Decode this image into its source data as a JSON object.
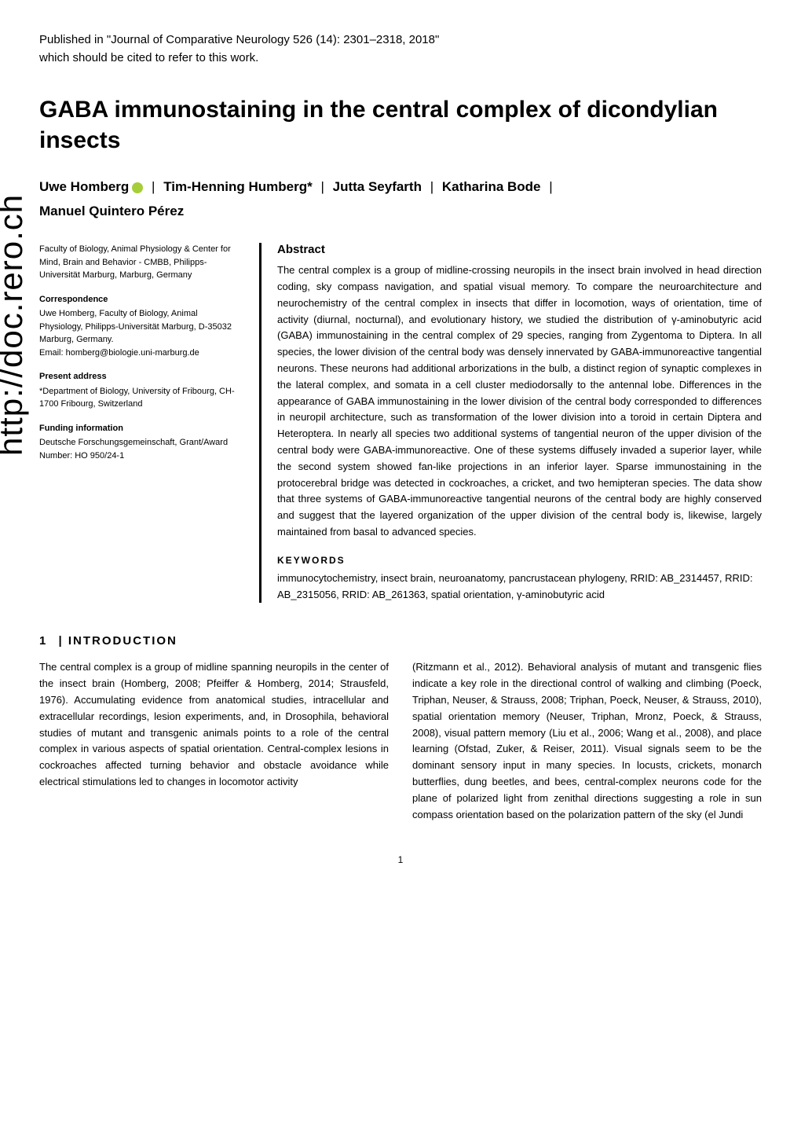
{
  "citation": {
    "line1": "Published in \"Journal of Comparative Neurology 526 (14): 2301–2318, 2018\"",
    "line2": "which should be cited to refer to this work."
  },
  "title": "GABA immunostaining in the central complex of dicondylian insects",
  "authors": {
    "a1": "Uwe Homberg",
    "a2": "Tim-Henning Humberg*",
    "a3": "Jutta Seyfarth",
    "a4": "Katharina Bode",
    "a5": "Manuel Quintero Pérez"
  },
  "sidebar": {
    "affiliation": "Faculty of Biology, Animal Physiology & Center for Mind, Brain and Behavior - CMBB, Philipps-Universität Marburg, Marburg, Germany",
    "correspondence_heading": "Correspondence",
    "correspondence": "Uwe Homberg, Faculty of Biology, Animal Physiology, Philipps-Universität Marburg, D-35032 Marburg, Germany.",
    "email": "Email: homberg@biologie.uni-marburg.de",
    "present_heading": "Present address",
    "present": "*Department of Biology, University of Fribourg, CH-1700 Fribourg, Switzerland",
    "funding_heading": "Funding information",
    "funding": "Deutsche Forschungsgemeinschaft, Grant/Award Number: HO 950/24-1"
  },
  "abstract": {
    "heading": "Abstract",
    "text": "The central complex is a group of midline-crossing neuropils in the insect brain involved in head direction coding, sky compass navigation, and spatial visual memory. To compare the neuroarchitecture and neurochemistry of the central complex in insects that differ in locomotion, ways of orientation, time of activity (diurnal, nocturnal), and evolutionary history, we studied the distribution of γ-aminobutyric acid (GABA) immunostaining in the central complex of 29 species, ranging from Zygentoma to Diptera. In all species, the lower division of the central body was densely innervated by GABA-immunoreactive tangential neurons. These neurons had additional arborizations in the bulb, a distinct region of synaptic complexes in the lateral complex, and somata in a cell cluster mediodorsally to the antennal lobe. Differences in the appearance of GABA immunostaining in the lower division of the central body corresponded to differences in neuropil architecture, such as transformation of the lower division into a toroid in certain Diptera and Heteroptera. In nearly all species two additional systems of tangential neuron of the upper division of the central body were GABA-immunoreactive. One of these systems diffusely invaded a superior layer, while the second system showed fan-like projections in an inferior layer. Sparse immunostaining in the protocerebral bridge was detected in cockroaches, a cricket, and two hemipteran species. The data show that three systems of GABA-immunoreactive tangential neurons of the central body are highly conserved and suggest that the layered organization of the upper division of the central body is, likewise, largely maintained from basal to advanced species.",
    "keywords_heading": "KEYWORDS",
    "keywords": "immunocytochemistry, insect brain, neuroanatomy, pancrustacean phylogeny, RRID: AB_2314457, RRID: AB_2315056, RRID: AB_261363, spatial orientation, γ-aminobutyric acid"
  },
  "intro": {
    "section_num": "1",
    "section_sep": "|",
    "heading": "INTRODUCTION",
    "col1": "The central complex is a group of midline spanning neuropils in the center of the insect brain (Homberg, 2008; Pfeiffer & Homberg, 2014; Strausfeld, 1976). Accumulating evidence from anatomical studies, intracellular and extracellular recordings, lesion experiments, and, in Drosophila, behavioral studies of mutant and transgenic animals points to a role of the central complex in various aspects of spatial orientation. Central-complex lesions in cockroaches affected turning behavior and obstacle avoidance while electrical stimulations led to changes in locomotor activity",
    "col2": "(Ritzmann et al., 2012). Behavioral analysis of mutant and transgenic flies indicate a key role in the directional control of walking and climbing (Poeck, Triphan, Neuser, & Strauss, 2008; Triphan, Poeck, Neuser, & Strauss, 2010), spatial orientation memory (Neuser, Triphan, Mronz, Poeck, & Strauss, 2008), visual pattern memory (Liu et al., 2006; Wang et al., 2008), and place learning (Ofstad, Zuker, & Reiser, 2011). Visual signals seem to be the dominant sensory input in many species. In locusts, crickets, monarch butterflies, dung beetles, and bees, central-complex neurons code for the plane of polarized light from zenithal directions suggesting a role in sun compass orientation based on the polarization pattern of the sky (el Jundi"
  },
  "watermark": "http://doc.rero.ch",
  "page_num": "1",
  "colors": {
    "text": "#000000",
    "background": "#ffffff",
    "orcid": "#a6ce39",
    "rule": "#000000"
  },
  "fonts": {
    "title_size": 30,
    "author_size": 17,
    "body_size": 13,
    "sidebar_size": 11,
    "watermark_size": 42
  }
}
